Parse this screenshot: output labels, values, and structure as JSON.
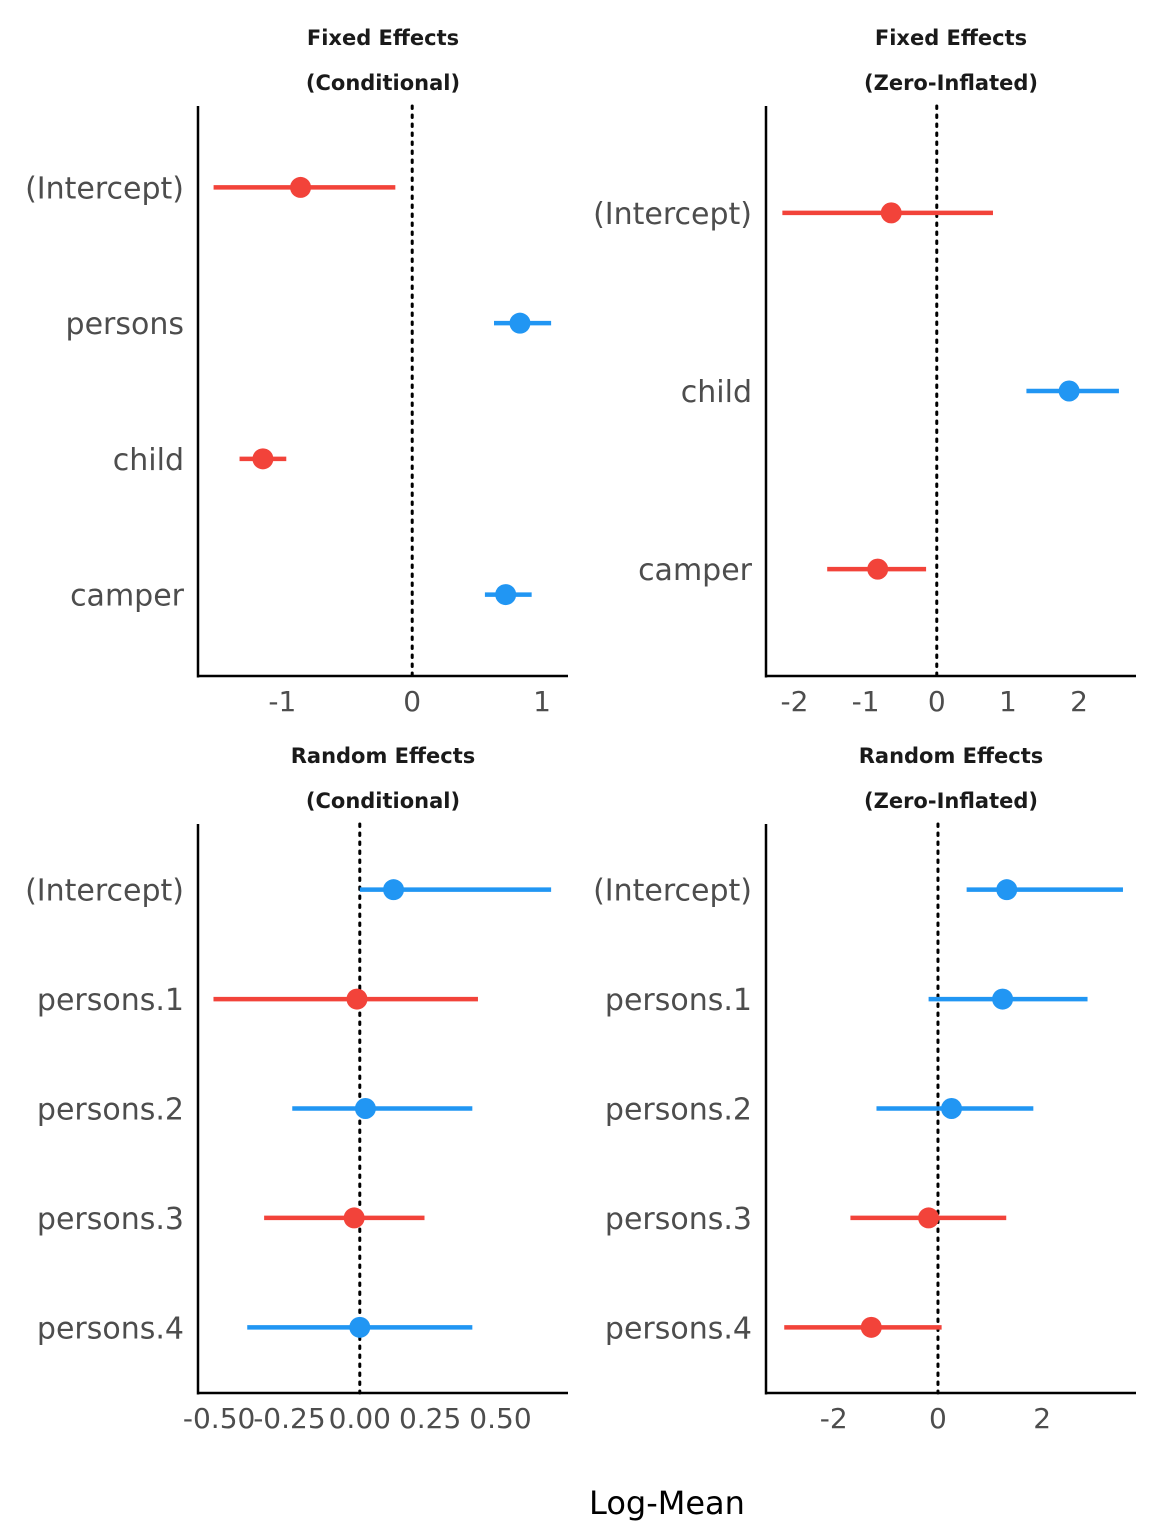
{
  "figure": {
    "xlabel": "Log-Mean"
  },
  "colors": {
    "negative": "#f2433a",
    "positive": "#2196f3",
    "axis": "#000000",
    "zero_line": "#000000",
    "text": "#4d4d4d"
  },
  "chart_data": [
    {
      "type": "forest",
      "title": [
        "Fixed Effects",
        "(Conditional)"
      ],
      "xlim": [
        -1.65,
        1.2
      ],
      "ticks": [
        -1,
        0,
        1
      ],
      "tick_labels": [
        "-1",
        "0",
        "1"
      ],
      "categories": [
        "(Intercept)",
        "persons",
        "child",
        "camper"
      ],
      "estimates": [
        -0.86,
        0.83,
        -1.15,
        0.72
      ],
      "ci_low": [
        -1.53,
        0.63,
        -1.33,
        0.56
      ],
      "ci_high": [
        -0.13,
        1.07,
        -0.97,
        0.92
      ],
      "signs": [
        "negative",
        "positive",
        "negative",
        "positive"
      ]
    },
    {
      "type": "forest",
      "title": [
        "Fixed Effects",
        "(Zero-Inflated)"
      ],
      "xlim": [
        -2.4,
        2.8
      ],
      "ticks": [
        -2,
        -1,
        0,
        1,
        2
      ],
      "tick_labels": [
        "-2",
        "-1",
        "0",
        "1",
        "2"
      ],
      "categories": [
        "(Intercept)",
        "child",
        "camper"
      ],
      "estimates": [
        -0.64,
        1.86,
        -0.83
      ],
      "ci_low": [
        -2.17,
        1.26,
        -1.54
      ],
      "ci_high": [
        0.79,
        2.56,
        -0.15
      ],
      "signs": [
        "negative",
        "positive",
        "negative"
      ]
    },
    {
      "type": "forest",
      "title": [
        "Random Effects",
        "(Conditional)"
      ],
      "xlim": [
        -0.575,
        0.74
      ],
      "ticks": [
        -0.5,
        -0.25,
        0.0,
        0.25,
        0.5
      ],
      "tick_labels": [
        "-0.50",
        "-0.25",
        "0.00",
        "0.25",
        "0.50"
      ],
      "categories": [
        "(Intercept)",
        "persons.1",
        "persons.2",
        "persons.3",
        "persons.4"
      ],
      "estimates": [
        0.12,
        -0.01,
        0.02,
        -0.02,
        0.0
      ],
      "ci_low": [
        0.0,
        -0.52,
        -0.24,
        -0.34,
        -0.4
      ],
      "ci_high": [
        0.68,
        0.42,
        0.4,
        0.23,
        0.4
      ],
      "signs": [
        "positive",
        "negative",
        "positive",
        "negative",
        "positive"
      ]
    },
    {
      "type": "forest",
      "title": [
        "Random Effects",
        "(Zero-Inflated)"
      ],
      "xlim": [
        -3.3,
        3.8
      ],
      "ticks": [
        -2,
        0,
        2
      ],
      "tick_labels": [
        "-2",
        "0",
        "2"
      ],
      "categories": [
        "(Intercept)",
        "persons.1",
        "persons.2",
        "persons.3",
        "persons.4"
      ],
      "estimates": [
        1.32,
        1.24,
        0.26,
        -0.18,
        -1.28
      ],
      "ci_low": [
        0.55,
        -0.18,
        -1.18,
        -1.68,
        -2.95
      ],
      "ci_high": [
        3.55,
        2.87,
        1.83,
        1.31,
        0.07
      ],
      "signs": [
        "positive",
        "positive",
        "positive",
        "negative",
        "negative"
      ]
    }
  ]
}
